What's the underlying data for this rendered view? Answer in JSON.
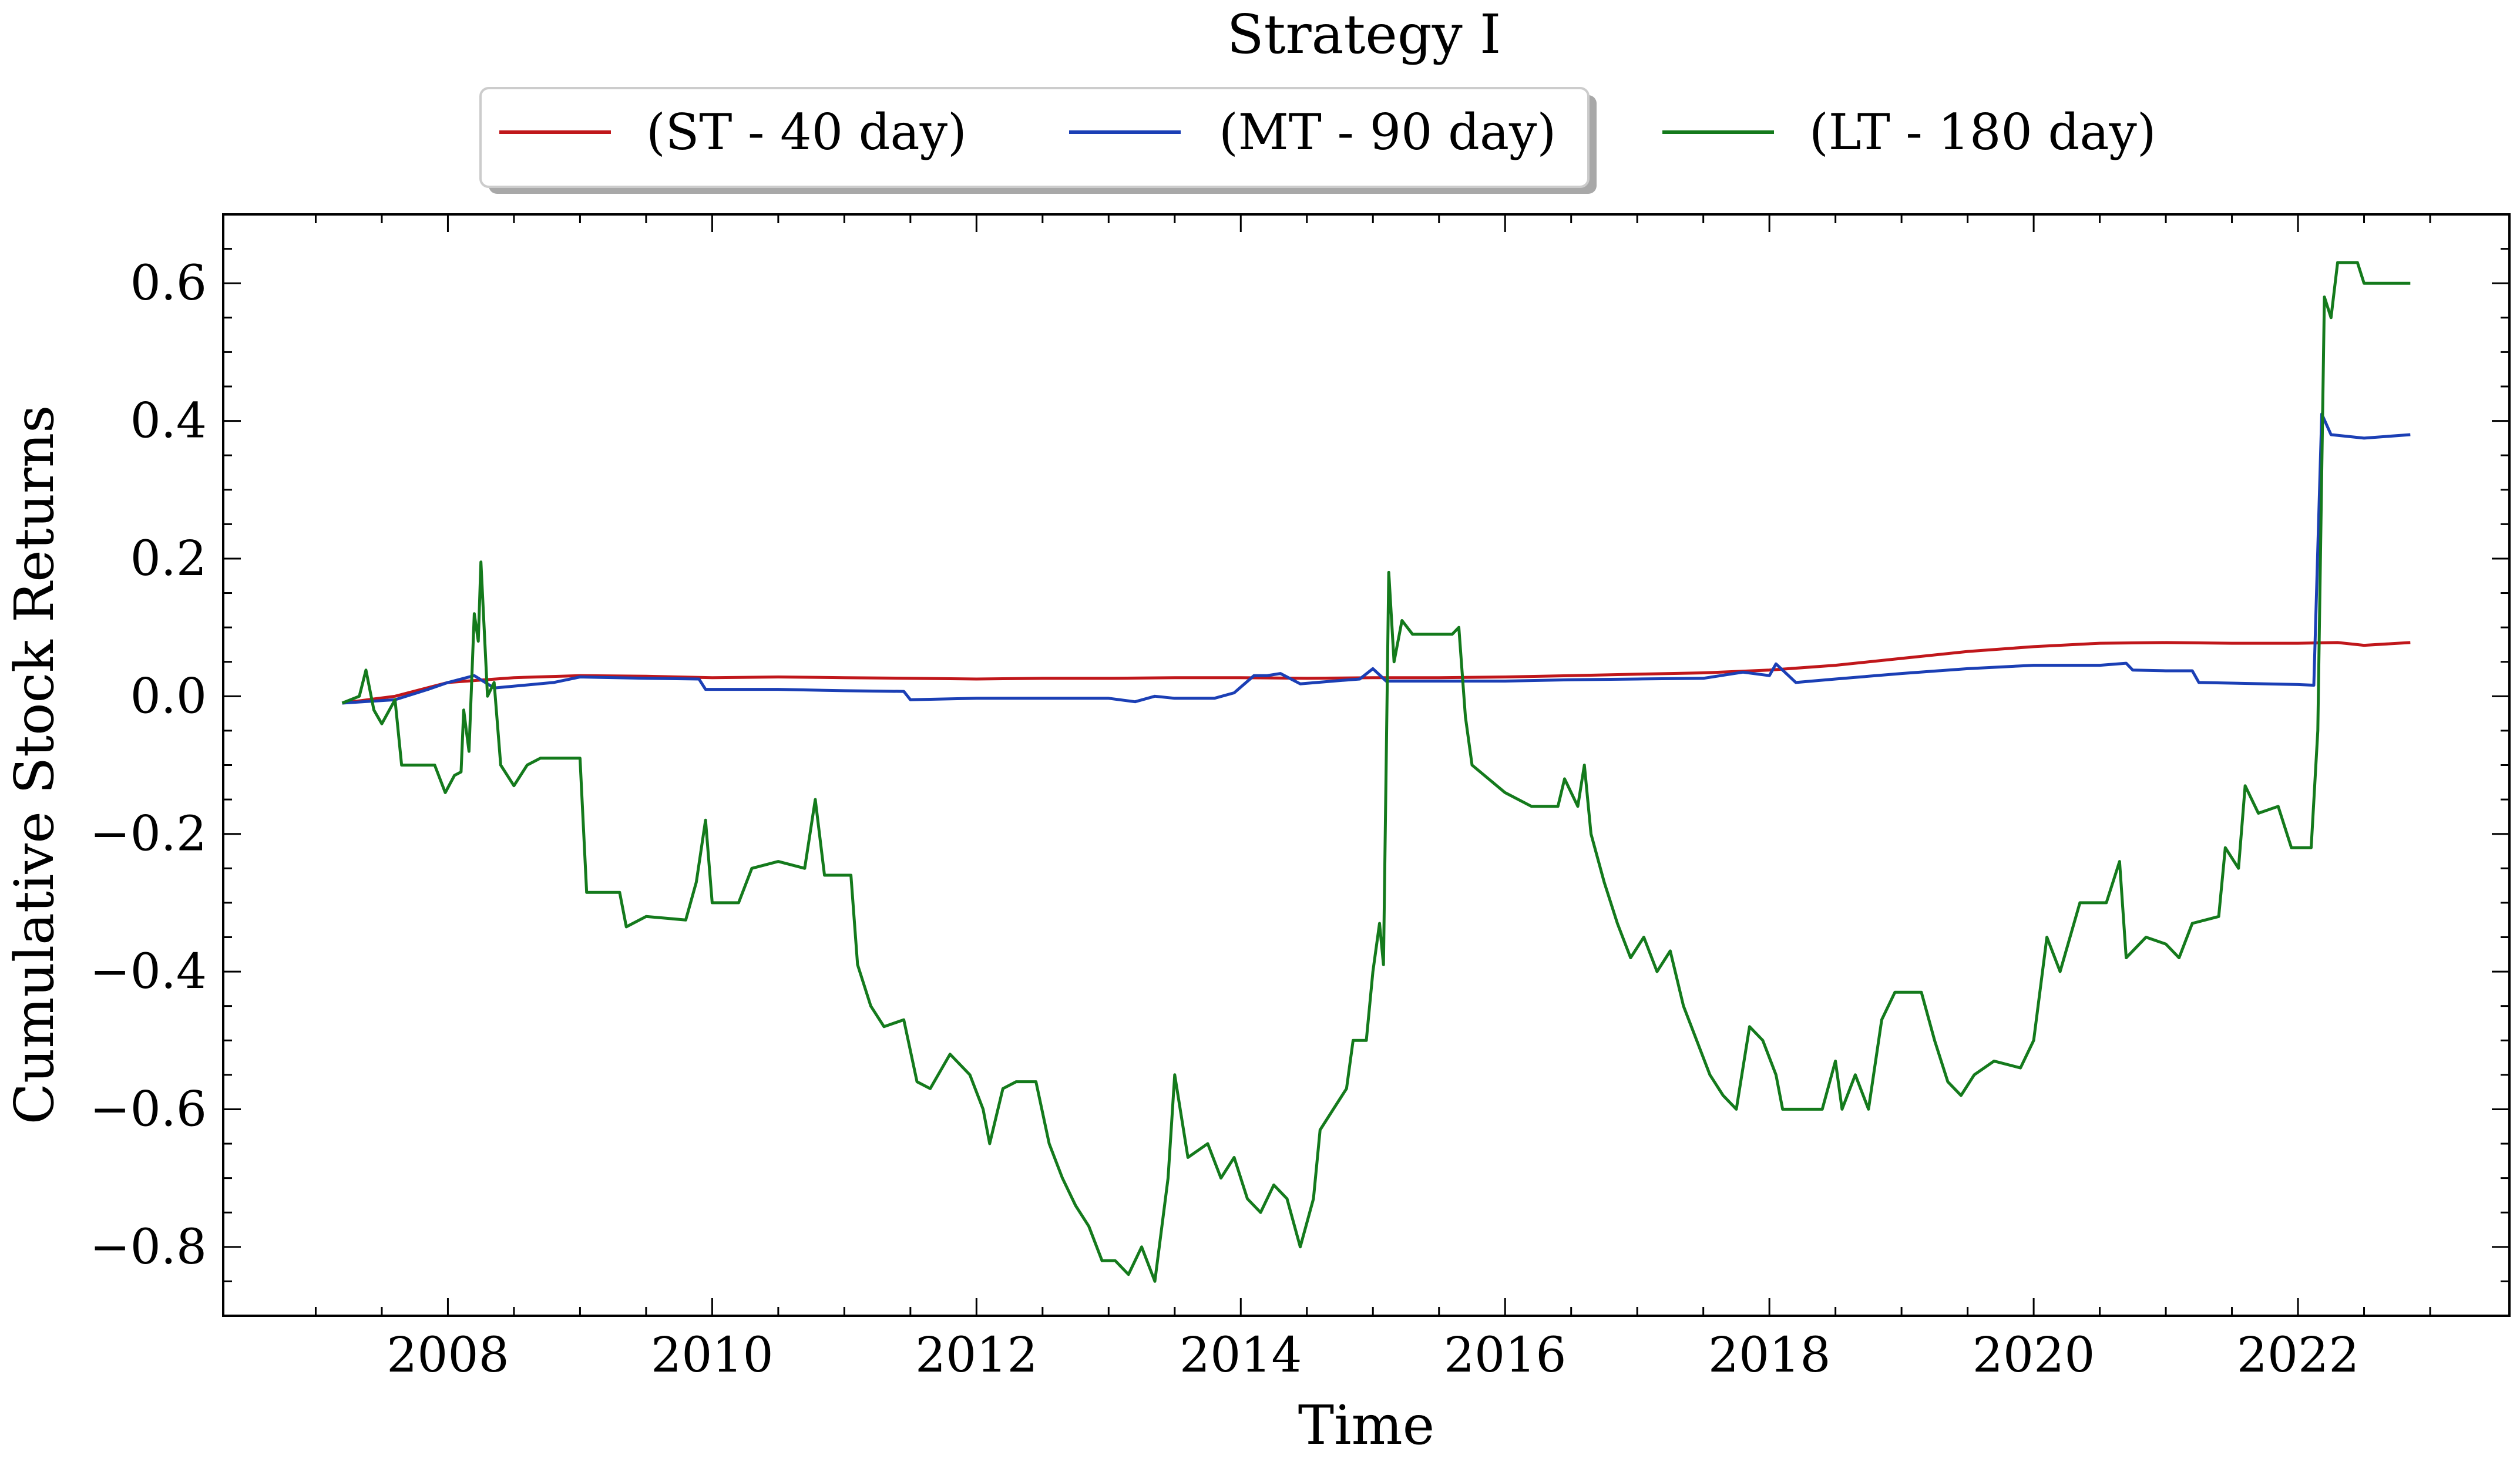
{
  "chart_data": {
    "type": "line",
    "title": "Strategy I",
    "xlabel": "Time",
    "ylabel": "Cumulative Stock Returns",
    "xlim": [
      2006.3,
      2023.6
    ],
    "ylim": [
      -0.9,
      0.7
    ],
    "xticks": [
      2008,
      2010,
      2012,
      2014,
      2016,
      2018,
      2020,
      2022
    ],
    "yticks": [
      0.6,
      0.4,
      0.2,
      0.0,
      -0.2,
      -0.4,
      -0.6,
      -0.8
    ],
    "ytick_labels": [
      "0.6",
      "0.4",
      "0.2",
      "0.0",
      "−0.2",
      "−0.4",
      "−0.6",
      "−0.8"
    ],
    "grid": false,
    "legend_position": "top-center (outside, above axes)",
    "series": [
      {
        "name": "(ST - 40 day)",
        "color": "#c0171b",
        "points": [
          [
            2007.2,
            -0.01
          ],
          [
            2007.6,
            0.0
          ],
          [
            2008.0,
            0.02
          ],
          [
            2008.5,
            0.027
          ],
          [
            2009.0,
            0.03
          ],
          [
            2009.5,
            0.029
          ],
          [
            2010.0,
            0.027
          ],
          [
            2010.5,
            0.028
          ],
          [
            2011.0,
            0.027
          ],
          [
            2011.5,
            0.026
          ],
          [
            2012.0,
            0.025
          ],
          [
            2012.5,
            0.026
          ],
          [
            2013.0,
            0.026
          ],
          [
            2013.5,
            0.027
          ],
          [
            2014.0,
            0.027
          ],
          [
            2014.5,
            0.026
          ],
          [
            2015.0,
            0.027
          ],
          [
            2015.5,
            0.027
          ],
          [
            2016.0,
            0.028
          ],
          [
            2016.5,
            0.03
          ],
          [
            2017.0,
            0.032
          ],
          [
            2017.5,
            0.034
          ],
          [
            2018.0,
            0.038
          ],
          [
            2018.5,
            0.045
          ],
          [
            2019.0,
            0.055
          ],
          [
            2019.5,
            0.065
          ],
          [
            2020.0,
            0.072
          ],
          [
            2020.5,
            0.077
          ],
          [
            2021.0,
            0.078
          ],
          [
            2021.5,
            0.077
          ],
          [
            2022.0,
            0.077
          ],
          [
            2022.3,
            0.078
          ],
          [
            2022.5,
            0.074
          ],
          [
            2022.85,
            0.078
          ]
        ]
      },
      {
        "name": "(MT - 90 day)",
        "color": "#1b3fb5",
        "points": [
          [
            2007.2,
            -0.01
          ],
          [
            2007.6,
            -0.005
          ],
          [
            2007.85,
            0.01
          ],
          [
            2008.0,
            0.02
          ],
          [
            2008.2,
            0.03
          ],
          [
            2008.35,
            0.012
          ],
          [
            2008.8,
            0.02
          ],
          [
            2009.0,
            0.028
          ],
          [
            2009.5,
            0.026
          ],
          [
            2009.9,
            0.025
          ],
          [
            2009.95,
            0.01
          ],
          [
            2010.5,
            0.01
          ],
          [
            2011.0,
            0.008
          ],
          [
            2011.45,
            0.007
          ],
          [
            2011.5,
            -0.005
          ],
          [
            2012.0,
            -0.003
          ],
          [
            2012.5,
            -0.003
          ],
          [
            2013.0,
            -0.003
          ],
          [
            2013.2,
            -0.008
          ],
          [
            2013.35,
            0.0
          ],
          [
            2013.5,
            -0.003
          ],
          [
            2013.8,
            -0.003
          ],
          [
            2013.95,
            0.005
          ],
          [
            2014.1,
            0.03
          ],
          [
            2014.2,
            0.03
          ],
          [
            2014.3,
            0.033
          ],
          [
            2014.45,
            0.018
          ],
          [
            2014.7,
            0.022
          ],
          [
            2014.9,
            0.025
          ],
          [
            2015.0,
            0.04
          ],
          [
            2015.1,
            0.022
          ],
          [
            2015.5,
            0.022
          ],
          [
            2016.0,
            0.022
          ],
          [
            2016.5,
            0.024
          ],
          [
            2017.0,
            0.025
          ],
          [
            2017.5,
            0.026
          ],
          [
            2017.8,
            0.035
          ],
          [
            2018.0,
            0.03
          ],
          [
            2018.05,
            0.047
          ],
          [
            2018.2,
            0.02
          ],
          [
            2018.5,
            0.025
          ],
          [
            2019.0,
            0.033
          ],
          [
            2019.5,
            0.04
          ],
          [
            2020.0,
            0.045
          ],
          [
            2020.5,
            0.045
          ],
          [
            2020.7,
            0.048
          ],
          [
            2020.75,
            0.038
          ],
          [
            2021.0,
            0.037
          ],
          [
            2021.2,
            0.037
          ],
          [
            2021.25,
            0.02
          ],
          [
            2022.0,
            0.017
          ],
          [
            2022.12,
            0.016
          ],
          [
            2022.18,
            0.41
          ],
          [
            2022.25,
            0.38
          ],
          [
            2022.5,
            0.375
          ],
          [
            2022.85,
            0.38
          ]
        ]
      },
      {
        "name": "(LT - 180 day)",
        "color": "#147a1c",
        "points": [
          [
            2007.2,
            -0.01
          ],
          [
            2007.33,
            0.0
          ],
          [
            2007.38,
            0.038
          ],
          [
            2007.44,
            -0.02
          ],
          [
            2007.5,
            -0.04
          ],
          [
            2007.6,
            -0.005
          ],
          [
            2007.65,
            -0.1
          ],
          [
            2007.9,
            -0.1
          ],
          [
            2007.98,
            -0.14
          ],
          [
            2008.05,
            -0.115
          ],
          [
            2008.1,
            -0.11
          ],
          [
            2008.12,
            -0.02
          ],
          [
            2008.16,
            -0.08
          ],
          [
            2008.2,
            0.12
          ],
          [
            2008.23,
            0.08
          ],
          [
            2008.25,
            0.195
          ],
          [
            2008.3,
            0.0
          ],
          [
            2008.35,
            0.02
          ],
          [
            2008.4,
            -0.1
          ],
          [
            2008.5,
            -0.13
          ],
          [
            2008.6,
            -0.1
          ],
          [
            2008.7,
            -0.09
          ],
          [
            2009.0,
            -0.09
          ],
          [
            2009.05,
            -0.285
          ],
          [
            2009.3,
            -0.285
          ],
          [
            2009.35,
            -0.335
          ],
          [
            2009.5,
            -0.32
          ],
          [
            2009.8,
            -0.325
          ],
          [
            2009.88,
            -0.27
          ],
          [
            2009.95,
            -0.18
          ],
          [
            2010.0,
            -0.3
          ],
          [
            2010.2,
            -0.3
          ],
          [
            2010.3,
            -0.25
          ],
          [
            2010.5,
            -0.24
          ],
          [
            2010.7,
            -0.25
          ],
          [
            2010.78,
            -0.15
          ],
          [
            2010.85,
            -0.26
          ],
          [
            2011.05,
            -0.26
          ],
          [
            2011.1,
            -0.39
          ],
          [
            2011.2,
            -0.45
          ],
          [
            2011.3,
            -0.48
          ],
          [
            2011.45,
            -0.47
          ],
          [
            2011.55,
            -0.56
          ],
          [
            2011.65,
            -0.57
          ],
          [
            2011.8,
            -0.52
          ],
          [
            2011.95,
            -0.55
          ],
          [
            2012.05,
            -0.6
          ],
          [
            2012.1,
            -0.65
          ],
          [
            2012.2,
            -0.57
          ],
          [
            2012.3,
            -0.56
          ],
          [
            2012.45,
            -0.56
          ],
          [
            2012.55,
            -0.65
          ],
          [
            2012.65,
            -0.7
          ],
          [
            2012.75,
            -0.74
          ],
          [
            2012.85,
            -0.77
          ],
          [
            2012.95,
            -0.82
          ],
          [
            2013.05,
            -0.82
          ],
          [
            2013.15,
            -0.84
          ],
          [
            2013.25,
            -0.8
          ],
          [
            2013.35,
            -0.85
          ],
          [
            2013.45,
            -0.7
          ],
          [
            2013.5,
            -0.55
          ],
          [
            2013.6,
            -0.67
          ],
          [
            2013.75,
            -0.65
          ],
          [
            2013.85,
            -0.7
          ],
          [
            2013.95,
            -0.67
          ],
          [
            2014.05,
            -0.73
          ],
          [
            2014.15,
            -0.75
          ],
          [
            2014.25,
            -0.71
          ],
          [
            2014.35,
            -0.73
          ],
          [
            2014.45,
            -0.8
          ],
          [
            2014.55,
            -0.73
          ],
          [
            2014.6,
            -0.63
          ],
          [
            2014.7,
            -0.6
          ],
          [
            2014.8,
            -0.57
          ],
          [
            2014.85,
            -0.5
          ],
          [
            2014.95,
            -0.5
          ],
          [
            2015.0,
            -0.4
          ],
          [
            2015.05,
            -0.33
          ],
          [
            2015.08,
            -0.39
          ],
          [
            2015.12,
            0.18
          ],
          [
            2015.16,
            0.05
          ],
          [
            2015.22,
            0.11
          ],
          [
            2015.3,
            0.09
          ],
          [
            2015.6,
            0.09
          ],
          [
            2015.65,
            0.1
          ],
          [
            2015.7,
            -0.03
          ],
          [
            2015.75,
            -0.1
          ],
          [
            2016.0,
            -0.14
          ],
          [
            2016.2,
            -0.16
          ],
          [
            2016.4,
            -0.16
          ],
          [
            2016.45,
            -0.12
          ],
          [
            2016.55,
            -0.16
          ],
          [
            2016.6,
            -0.1
          ],
          [
            2016.65,
            -0.2
          ],
          [
            2016.75,
            -0.27
          ],
          [
            2016.85,
            -0.33
          ],
          [
            2016.95,
            -0.38
          ],
          [
            2017.05,
            -0.35
          ],
          [
            2017.15,
            -0.4
          ],
          [
            2017.25,
            -0.37
          ],
          [
            2017.35,
            -0.45
          ],
          [
            2017.45,
            -0.5
          ],
          [
            2017.55,
            -0.55
          ],
          [
            2017.65,
            -0.58
          ],
          [
            2017.75,
            -0.6
          ],
          [
            2017.85,
            -0.48
          ],
          [
            2017.95,
            -0.5
          ],
          [
            2018.05,
            -0.55
          ],
          [
            2018.1,
            -0.6
          ],
          [
            2018.4,
            -0.6
          ],
          [
            2018.5,
            -0.53
          ],
          [
            2018.55,
            -0.6
          ],
          [
            2018.65,
            -0.55
          ],
          [
            2018.75,
            -0.6
          ],
          [
            2018.85,
            -0.47
          ],
          [
            2018.95,
            -0.43
          ],
          [
            2019.15,
            -0.43
          ],
          [
            2019.25,
            -0.5
          ],
          [
            2019.35,
            -0.56
          ],
          [
            2019.45,
            -0.58
          ],
          [
            2019.55,
            -0.55
          ],
          [
            2019.7,
            -0.53
          ],
          [
            2019.9,
            -0.54
          ],
          [
            2020.0,
            -0.5
          ],
          [
            2020.1,
            -0.35
          ],
          [
            2020.2,
            -0.4
          ],
          [
            2020.35,
            -0.3
          ],
          [
            2020.55,
            -0.3
          ],
          [
            2020.65,
            -0.24
          ],
          [
            2020.7,
            -0.38
          ],
          [
            2020.85,
            -0.35
          ],
          [
            2021.0,
            -0.36
          ],
          [
            2021.1,
            -0.38
          ],
          [
            2021.2,
            -0.33
          ],
          [
            2021.4,
            -0.32
          ],
          [
            2021.45,
            -0.22
          ],
          [
            2021.55,
            -0.25
          ],
          [
            2021.6,
            -0.13
          ],
          [
            2021.7,
            -0.17
          ],
          [
            2021.85,
            -0.16
          ],
          [
            2021.95,
            -0.22
          ],
          [
            2022.1,
            -0.22
          ],
          [
            2022.15,
            -0.05
          ],
          [
            2022.2,
            0.58
          ],
          [
            2022.25,
            0.55
          ],
          [
            2022.3,
            0.63
          ],
          [
            2022.45,
            0.63
          ],
          [
            2022.5,
            0.6
          ],
          [
            2022.85,
            0.6
          ]
        ]
      }
    ]
  }
}
